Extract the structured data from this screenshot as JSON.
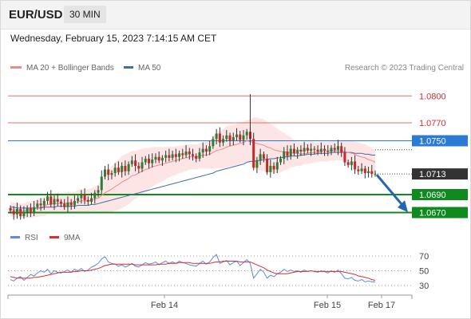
{
  "header": {
    "symbol": "EUR/USD",
    "timeframe": "30 MIN",
    "datetime": "Wednesday, February 15, 2023 7:14:15 AM CET"
  },
  "legend": {
    "ma20_label": "MA 20 + Bollinger Bands",
    "ma50_label": "MA 50",
    "credit": "Research © 2023 Trading Central",
    "rsi_label": "RSI",
    "rsi_ma_label": "9MA"
  },
  "colors": {
    "ma20": "#f08a8a",
    "ma50": "#3f6fa8",
    "bollinger_fill": "#fde2e2",
    "resistance_line": "#e86b6b",
    "pivot_line": "#2b7bd6",
    "support_line": "#0f8a1f",
    "current_price_bg": "#333333",
    "candle_up": "#2f7d32",
    "candle_down": "#c62828",
    "arrow": "#2566b0",
    "rsi": "#5b8bd9",
    "rsi_ma": "#d9302f"
  },
  "chart_data": [
    {
      "type": "candlestick",
      "title": "EUR/USD 30 MIN",
      "ylim": [
        1.0658,
        1.0818
      ],
      "x_labels": [
        "Feb 14",
        "Feb 15",
        "Feb 17"
      ],
      "levels": [
        {
          "value": 1.08,
          "label": "1.0800",
          "kind": "resistance"
        },
        {
          "value": 1.077,
          "label": "1.0770",
          "kind": "resistance"
        },
        {
          "value": 1.075,
          "label": "1.0750",
          "kind": "pivot"
        },
        {
          "value": 1.069,
          "label": "1.0690",
          "kind": "support"
        },
        {
          "value": 1.067,
          "label": "1.0670",
          "kind": "support"
        }
      ],
      "current_price": {
        "value": 1.0713,
        "label": "1.0713"
      },
      "forecast_arrow": {
        "from": 1.0712,
        "to": 1.0673,
        "direction": "down"
      },
      "close": [
        1.0672,
        1.0668,
        1.0674,
        1.0666,
        1.0671,
        1.0675,
        1.067,
        1.0676,
        1.068,
        1.0678,
        1.0683,
        1.0688,
        1.0679,
        1.0685,
        1.0682,
        1.068,
        1.0676,
        1.0681,
        1.0678,
        1.0683,
        1.0686,
        1.069,
        1.0684,
        1.0682,
        1.0686,
        1.0692,
        1.0695,
        1.071,
        1.0718,
        1.0712,
        1.0714,
        1.072,
        1.0715,
        1.0722,
        1.0716,
        1.0724,
        1.0728,
        1.0722,
        1.0719,
        1.0726,
        1.073,
        1.0725,
        1.0729,
        1.0732,
        1.0728,
        1.0731,
        1.0734,
        1.0731,
        1.0735,
        1.0732,
        1.0736,
        1.0734,
        1.0738,
        1.0735,
        1.0733,
        1.073,
        1.0737,
        1.0741,
        1.0738,
        1.0744,
        1.0752,
        1.0758,
        1.0748,
        1.0752,
        1.0756,
        1.075,
        1.0754,
        1.0757,
        1.0751,
        1.0756,
        1.076,
        1.0752,
        1.072,
        1.0728,
        1.0735,
        1.073,
        1.0715,
        1.0722,
        1.0718,
        1.0726,
        1.073,
        1.0738,
        1.0733,
        1.0741,
        1.0736,
        1.074,
        1.0738,
        1.0742,
        1.0739,
        1.0741,
        1.074,
        1.0738,
        1.0741,
        1.0739,
        1.0738,
        1.0742,
        1.074,
        1.0744,
        1.0737,
        1.0726,
        1.0723,
        1.0727,
        1.0718,
        1.0716,
        1.0719,
        1.0714,
        1.0716,
        1.0713,
        1.0713
      ],
      "ma20": [
        1.0674,
        1.0673,
        1.0673,
        1.0672,
        1.0672,
        1.0673,
        1.0673,
        1.0674,
        1.0675,
        1.0676,
        1.0677,
        1.0679,
        1.0679,
        1.068,
        1.068,
        1.068,
        1.068,
        1.0681,
        1.0681,
        1.0681,
        1.0682,
        1.0683,
        1.0683,
        1.0683,
        1.0684,
        1.0685,
        1.0686,
        1.0689,
        1.0692,
        1.0694,
        1.0696,
        1.0699,
        1.0701,
        1.0704,
        1.0706,
        1.0708,
        1.0711,
        1.0712,
        1.0714,
        1.0716,
        1.0718,
        1.0719,
        1.0721,
        1.0722,
        1.0723,
        1.0724,
        1.0725,
        1.0726,
        1.0727,
        1.0728,
        1.0729,
        1.073,
        1.0731,
        1.0732,
        1.0732,
        1.0732,
        1.0733,
        1.0734,
        1.0734,
        1.0735,
        1.0737,
        1.0739,
        1.074,
        1.0741,
        1.0743,
        1.0744,
        1.0745,
        1.0746,
        1.0747,
        1.0748,
        1.075,
        1.0749,
        1.0748,
        1.0747,
        1.0746,
        1.0745,
        1.0743,
        1.0742,
        1.074,
        1.0739,
        1.0738,
        1.0738,
        1.0737,
        1.0737,
        1.0736,
        1.0736,
        1.0735,
        1.0736,
        1.0736,
        1.0737,
        1.0737,
        1.0737,
        1.0738,
        1.0738,
        1.0738,
        1.0739,
        1.0739,
        1.0739,
        1.0739,
        1.0738,
        1.0737,
        1.0736,
        1.0735,
        1.0733,
        1.0732,
        1.0731,
        1.0729,
        1.0728,
        1.0726
      ],
      "ma50": [
        1.0676,
        1.0676,
        1.0675,
        1.0675,
        1.0675,
        1.0675,
        1.0675,
        1.0675,
        1.0675,
        1.0675,
        1.0676,
        1.0676,
        1.0676,
        1.0676,
        1.0677,
        1.0677,
        1.0677,
        1.0677,
        1.0677,
        1.0677,
        1.0678,
        1.0678,
        1.0678,
        1.0678,
        1.0679,
        1.0679,
        1.068,
        1.0681,
        1.0682,
        1.0683,
        1.0684,
        1.0685,
        1.0686,
        1.0687,
        1.0688,
        1.0689,
        1.069,
        1.0691,
        1.0692,
        1.0693,
        1.0694,
        1.0695,
        1.0696,
        1.0697,
        1.0698,
        1.0699,
        1.07,
        1.0701,
        1.0702,
        1.0703,
        1.0704,
        1.0705,
        1.0706,
        1.0707,
        1.0708,
        1.0709,
        1.071,
        1.0711,
        1.0712,
        1.0713,
        1.0714,
        1.0716,
        1.0717,
        1.0718,
        1.0719,
        1.072,
        1.0721,
        1.0722,
        1.0723,
        1.0724,
        1.0726,
        1.0727,
        1.0727,
        1.0728,
        1.0728,
        1.0729,
        1.0729,
        1.073,
        1.073,
        1.0731,
        1.0731,
        1.0732,
        1.0732,
        1.0733,
        1.0733,
        1.0733,
        1.0734,
        1.0734,
        1.0735,
        1.0735,
        1.0735,
        1.0736,
        1.0736,
        1.0736,
        1.0736,
        1.0737,
        1.0737,
        1.0737,
        1.0737,
        1.0737,
        1.0737,
        1.0737,
        1.0736,
        1.0736,
        1.0736,
        1.0735,
        1.0735,
        1.0734,
        1.0734
      ],
      "bollinger_width": [
        0.0008,
        0.0008,
        0.0008,
        0.0008,
        0.0008,
        0.0009,
        0.0009,
        0.0009,
        0.001,
        0.001,
        0.0011,
        0.0011,
        0.0011,
        0.0012,
        0.0012,
        0.0012,
        0.0012,
        0.0012,
        0.0012,
        0.0012,
        0.0013,
        0.0013,
        0.0013,
        0.0013,
        0.0013,
        0.0014,
        0.0015,
        0.0018,
        0.0021,
        0.0023,
        0.0025,
        0.0027,
        0.0028,
        0.0029,
        0.0029,
        0.0029,
        0.0028,
        0.0027,
        0.0026,
        0.0025,
        0.0024,
        0.0023,
        0.0022,
        0.0021,
        0.002,
        0.0019,
        0.0018,
        0.0017,
        0.0016,
        0.0016,
        0.0015,
        0.0015,
        0.0015,
        0.0014,
        0.0014,
        0.0014,
        0.0014,
        0.0015,
        0.0015,
        0.0016,
        0.0018,
        0.002,
        0.0021,
        0.0022,
        0.0023,
        0.0023,
        0.0023,
        0.0023,
        0.0023,
        0.0023,
        0.0023,
        0.0025,
        0.0028,
        0.0029,
        0.0029,
        0.0029,
        0.0028,
        0.0027,
        0.0026,
        0.0025,
        0.0023,
        0.0021,
        0.0019,
        0.0017,
        0.0015,
        0.0014,
        0.0013,
        0.0012,
        0.0012,
        0.0012,
        0.0011,
        0.0011,
        0.0011,
        0.0011,
        0.0011,
        0.0011,
        0.0011,
        0.0011,
        0.0011,
        0.0012,
        0.0013,
        0.0014,
        0.0014,
        0.0015,
        0.0015,
        0.0015,
        0.0015,
        0.0014,
        0.0014
      ]
    },
    {
      "type": "line",
      "title": "RSI",
      "ylim": [
        30,
        70
      ],
      "y_ticks": [
        70,
        50,
        30
      ],
      "series": [
        {
          "name": "RSI",
          "values": [
            38,
            36,
            40,
            42,
            37,
            41,
            45,
            43,
            47,
            50,
            48,
            52,
            46,
            50,
            48,
            47,
            49,
            51,
            48,
            52,
            50,
            53,
            49,
            51,
            55,
            57,
            60,
            66,
            69,
            62,
            60,
            59,
            56,
            58,
            55,
            57,
            60,
            56,
            55,
            58,
            61,
            59,
            60,
            62,
            58,
            61,
            63,
            60,
            62,
            60,
            63,
            61,
            60,
            58,
            57,
            56,
            60,
            63,
            59,
            62,
            68,
            72,
            60,
            62,
            64,
            58,
            61,
            63,
            57,
            61,
            65,
            60,
            40,
            46,
            52,
            48,
            40,
            44,
            42,
            46,
            48,
            52,
            49,
            51,
            49,
            50,
            48,
            51,
            49,
            50,
            49,
            48,
            50,
            49,
            47,
            50,
            48,
            51,
            46,
            40,
            39,
            41,
            37,
            36,
            38,
            35,
            36,
            35,
            35
          ]
        },
        {
          "name": "9MA",
          "values": [
            42,
            41,
            40,
            40,
            40,
            40,
            40,
            41,
            41,
            42,
            43,
            44,
            45,
            46,
            47,
            48,
            48,
            48,
            48,
            49,
            49,
            50,
            50,
            50,
            51,
            52,
            53,
            55,
            57,
            58,
            59,
            59,
            59,
            59,
            59,
            59,
            59,
            58,
            58,
            58,
            58,
            58,
            58,
            58,
            59,
            59,
            59,
            60,
            60,
            60,
            61,
            61,
            61,
            61,
            60,
            60,
            60,
            60,
            60,
            60,
            61,
            62,
            62,
            63,
            63,
            63,
            63,
            63,
            62,
            62,
            62,
            62,
            60,
            58,
            56,
            54,
            51,
            49,
            47,
            46,
            46,
            46,
            46,
            47,
            48,
            49,
            49,
            49,
            49,
            50,
            49,
            49,
            49,
            49,
            49,
            49,
            49,
            49,
            49,
            48,
            47,
            46,
            45,
            43,
            42,
            41,
            40,
            38,
            37
          ]
        }
      ]
    }
  ]
}
